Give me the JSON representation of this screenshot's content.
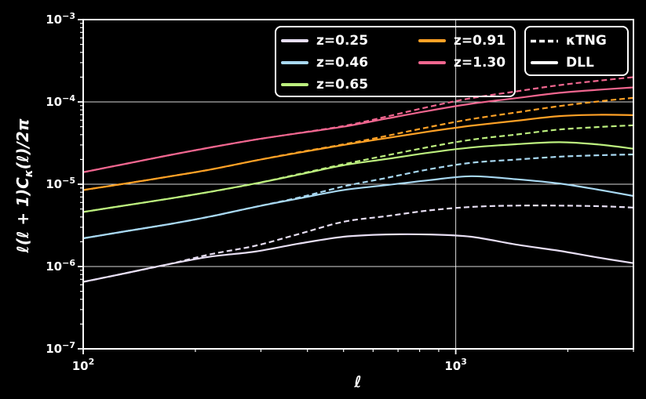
{
  "figure": {
    "background": "#000000",
    "foreground": "#ffffff"
  },
  "axes": {
    "xlabel": "ℓ",
    "ylabel": {
      "pre": "ℓ(ℓ + 1)C",
      "sub": "κ",
      "post": "(ℓ)/2π"
    },
    "x_ticks": [
      {
        "value": 100,
        "exp": 2
      },
      {
        "value": 1000,
        "exp": 3
      }
    ],
    "y_ticks": [
      {
        "value": 0.001,
        "exp": -3
      },
      {
        "value": 0.0001,
        "exp": -4
      },
      {
        "value": 1e-05,
        "exp": -5
      },
      {
        "value": 1e-06,
        "exp": -6
      },
      {
        "value": 1e-07,
        "exp": -7
      }
    ],
    "x_gridlines": [
      1000
    ],
    "y_gridlines": [
      0.0001,
      1e-05,
      1e-06
    ]
  },
  "legends": {
    "styles": [
      {
        "label": "κTNG",
        "line": "dashed"
      },
      {
        "label": "DLL",
        "line": "solid"
      }
    ]
  },
  "chart_data": {
    "type": "line",
    "title": "",
    "xlabel": "ℓ",
    "ylabel": "ℓ(ℓ+1)C_κ(ℓ)/2π",
    "xscale": "log",
    "yscale": "log",
    "xlim": [
      100,
      3000
    ],
    "ylim": [
      1e-07,
      0.001
    ],
    "grid": true,
    "legend_position": "upper center / upper right",
    "line_styles": {
      "kTNG": "dashed",
      "DLL": "solid"
    },
    "x": [
      100,
      130,
      170,
      220,
      290,
      380,
      500,
      650,
      850,
      1100,
      1450,
      1900,
      2450,
      3000
    ],
    "series": [
      {
        "name": "z=0.25",
        "color": "#e7def3",
        "DLL": [
          6.5e-07,
          8.3e-07,
          1.07e-06,
          1.32e-06,
          1.52e-06,
          1.9e-06,
          2.3e-06,
          2.45e-06,
          2.45e-06,
          2.3e-06,
          1.85e-06,
          1.55e-06,
          1.27e-06,
          1.1e-06
        ],
        "kTNG": [
          6.5e-07,
          8.3e-07,
          1.07e-06,
          1.41e-06,
          1.79e-06,
          2.49e-06,
          3.5e-06,
          4.09e-06,
          4.81e-06,
          5.3e-06,
          5.5e-06,
          5.5e-06,
          5.4e-06,
          5.2e-06
        ]
      },
      {
        "name": "z=0.46",
        "color": "#a8d8f2",
        "DLL": [
          2.2e-06,
          2.68e-06,
          3.27e-06,
          4.06e-06,
          5.31e-06,
          6.73e-06,
          8.5e-06,
          9.74e-06,
          1.12e-05,
          1.25e-05,
          1.15e-05,
          1.02e-05,
          8.48e-06,
          7.2e-06
        ],
        "kTNG": [
          2.2e-06,
          2.68e-06,
          3.27e-06,
          4.06e-06,
          5.31e-06,
          6.9e-06,
          9.4e-06,
          1.19e-05,
          1.52e-05,
          1.82e-05,
          1.99e-05,
          2.16e-05,
          2.25e-05,
          2.3e-05
        ]
      },
      {
        "name": "z=0.65",
        "color": "#bcef7e",
        "DLL": [
          4.6e-06,
          5.53e-06,
          6.68e-06,
          8.11e-06,
          1.02e-05,
          1.31e-05,
          1.7e-05,
          2.02e-05,
          2.42e-05,
          2.79e-05,
          3.06e-05,
          3.24e-05,
          3.02e-05,
          2.7e-05
        ],
        "kTNG": [
          4.6e-06,
          5.53e-06,
          6.68e-06,
          8.11e-06,
          1.02e-05,
          1.33e-05,
          1.75e-05,
          2.23e-05,
          2.84e-05,
          3.47e-05,
          4.01e-05,
          4.62e-05,
          4.97e-05,
          5.2e-05
        ]
      },
      {
        "name": "z=0.91",
        "color": "#ffa126",
        "DLL": [
          8.5e-06,
          1.02e-05,
          1.24e-05,
          1.51e-05,
          1.94e-05,
          2.42e-05,
          3e-05,
          3.62e-05,
          4.37e-05,
          5.13e-05,
          5.89e-05,
          6.73e-05,
          6.98e-05,
          6.9e-05
        ],
        "kTNG": [
          8.5e-06,
          1.02e-05,
          1.24e-05,
          1.51e-05,
          1.94e-05,
          2.45e-05,
          3.05e-05,
          3.85e-05,
          4.96e-05,
          6.17e-05,
          7.43e-05,
          8.9e-05,
          0.000102,
          0.000112
        ]
      },
      {
        "name": "z=1.30",
        "color": "#f0668f",
        "DLL": [
          1.4e-05,
          1.77e-05,
          2.25e-05,
          2.8e-05,
          3.48e-05,
          4.18e-05,
          5e-05,
          6.25e-05,
          7.83e-05,
          9.49e-05,
          0.000111,
          0.000129,
          0.000141,
          0.00015
        ],
        "kTNG": [
          1.4e-05,
          1.77e-05,
          2.25e-05,
          2.8e-05,
          3.48e-05,
          4.2e-05,
          5.1e-05,
          6.6e-05,
          8.75e-05,
          0.000111,
          0.000134,
          0.00016,
          0.000182,
          0.0002
        ]
      }
    ]
  }
}
